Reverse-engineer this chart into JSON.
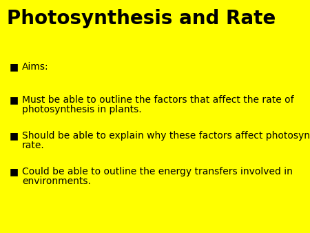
{
  "background_color": "#FFFF00",
  "title": "Photosynthesis and Rate",
  "title_fontsize": 20,
  "title_fontweight": "bold",
  "title_color": "#000000",
  "bullet_color": "#000000",
  "text_color": "#000000",
  "bullet_char": "■",
  "items": [
    {
      "lines": [
        "Aims:"
      ]
    },
    {
      "lines": [
        "Must be able to outline the factors that affect the rate of",
        "photosynthesis in plants."
      ]
    },
    {
      "lines": [
        "Should be able to explain why these factors affect photosynthetic",
        "rate."
      ]
    },
    {
      "lines": [
        "Could be able to outline the energy transfers involved in",
        "environments."
      ]
    }
  ],
  "item_fontsize": 10,
  "figsize": [
    4.5,
    3.38
  ],
  "dpi": 100
}
